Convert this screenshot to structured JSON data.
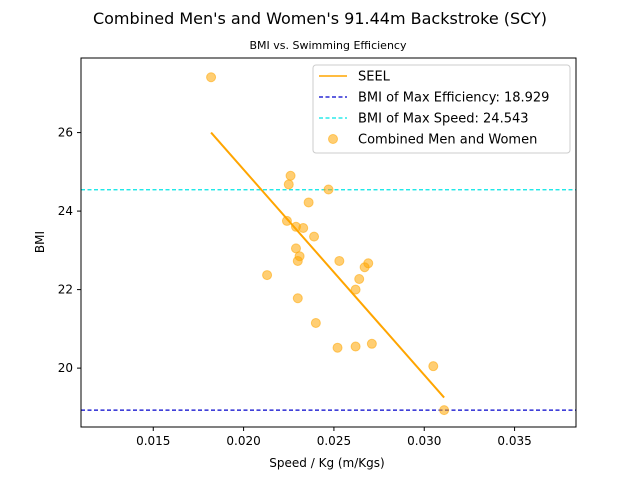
{
  "chart_data": {
    "type": "scatter",
    "title": "Combined Men's and Women's 91.44m Backstroke (SCY)",
    "subtitle": "BMI vs. Swimming Efficiency",
    "xlabel": "Speed / Kg (m/Kgs)",
    "ylabel": "BMI",
    "xlim": [
      0.011,
      0.0384
    ],
    "ylim": [
      18.5,
      27.9
    ],
    "xticks": [
      0.015,
      0.02,
      0.025,
      0.03,
      0.035
    ],
    "xtick_labels": [
      "0.015",
      "0.020",
      "0.025",
      "0.030",
      "0.035"
    ],
    "yticks": [
      20,
      22,
      24,
      26
    ],
    "ytick_labels": [
      "20",
      "22",
      "24",
      "26"
    ],
    "grid": false,
    "legend_position": "top-right",
    "series": [
      {
        "name": "Combined Men and Women",
        "kind": "scatter",
        "color": "#ffa500",
        "points": [
          [
            0.0182,
            27.41
          ],
          [
            0.0226,
            24.9
          ],
          [
            0.0225,
            24.68
          ],
          [
            0.0247,
            24.55
          ],
          [
            0.0236,
            24.22
          ],
          [
            0.0224,
            23.75
          ],
          [
            0.0229,
            23.6
          ],
          [
            0.0233,
            23.57
          ],
          [
            0.0239,
            23.35
          ],
          [
            0.0229,
            23.05
          ],
          [
            0.0231,
            22.85
          ],
          [
            0.023,
            22.73
          ],
          [
            0.0253,
            22.73
          ],
          [
            0.0269,
            22.67
          ],
          [
            0.0267,
            22.57
          ],
          [
            0.0213,
            22.37
          ],
          [
            0.0264,
            22.27
          ],
          [
            0.0262,
            22.0
          ],
          [
            0.023,
            21.78
          ],
          [
            0.024,
            21.15
          ],
          [
            0.0271,
            20.62
          ],
          [
            0.0262,
            20.55
          ],
          [
            0.0252,
            20.52
          ],
          [
            0.0305,
            20.05
          ],
          [
            0.0311,
            18.93
          ]
        ]
      },
      {
        "name": "SEEL",
        "kind": "line",
        "color": "#ffa500",
        "points": [
          [
            0.0182,
            26.0
          ],
          [
            0.0311,
            19.25
          ]
        ]
      }
    ],
    "reference_lines": [
      {
        "label": "BMI of Max Efficiency: 18.929",
        "y": 18.929,
        "color": "#0000cc"
      },
      {
        "label": "BMI of Max Speed: 24.543",
        "y": 24.543,
        "color": "#00e5e5"
      }
    ],
    "legend": [
      {
        "label": "SEEL",
        "marker": "line",
        "color": "#ffa500"
      },
      {
        "label": "BMI of Max Efficiency: 18.929",
        "marker": "dashed",
        "color": "#0000cc"
      },
      {
        "label": "BMI of Max Speed: 24.543",
        "marker": "dashed",
        "color": "#00e5e5"
      },
      {
        "label": "Combined Men and Women",
        "marker": "dot",
        "color": "#ffa500"
      }
    ]
  }
}
